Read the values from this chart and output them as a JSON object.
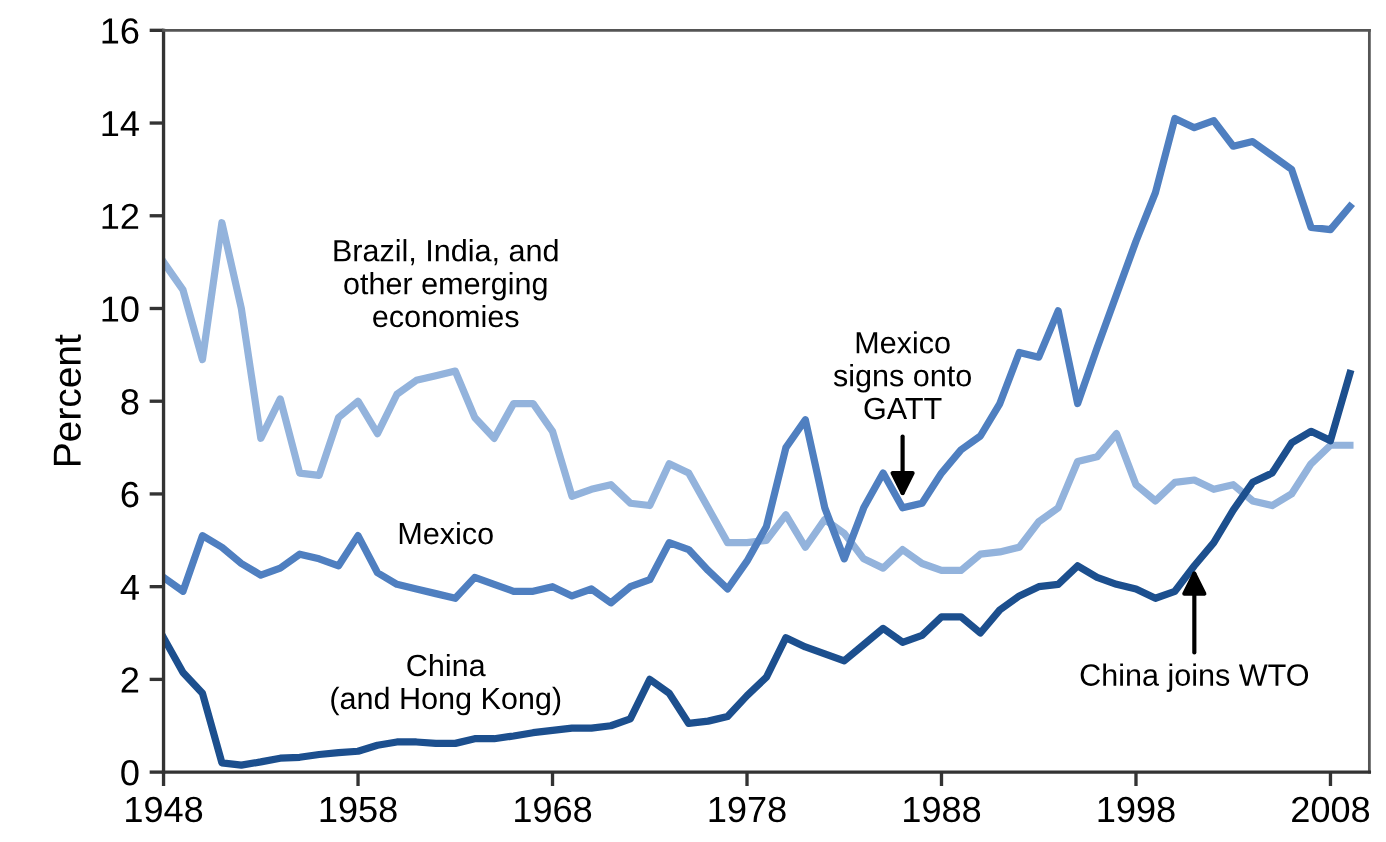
{
  "chart_data": {
    "type": "line",
    "ylabel": "Percent",
    "x": [
      1948,
      1949,
      1950,
      1951,
      1952,
      1953,
      1954,
      1955,
      1956,
      1957,
      1958,
      1959,
      1960,
      1961,
      1962,
      1963,
      1964,
      1965,
      1966,
      1967,
      1968,
      1969,
      1970,
      1971,
      1972,
      1973,
      1974,
      1975,
      1976,
      1977,
      1978,
      1979,
      1980,
      1981,
      1982,
      1983,
      1984,
      1985,
      1986,
      1987,
      1988,
      1989,
      1990,
      1991,
      1992,
      1993,
      1994,
      1995,
      1996,
      1997,
      1998,
      1999,
      2000,
      2001,
      2002,
      2003,
      2004,
      2005,
      2006,
      2007,
      2008,
      2009
    ],
    "series": [
      {
        "name": "Brazil, India, and\nother emerging\neconomies",
        "color": "#93b3dc",
        "values": [
          11.0,
          10.4,
          8.9,
          11.85,
          10.0,
          7.2,
          8.05,
          6.45,
          6.4,
          7.65,
          8.0,
          7.3,
          8.15,
          8.45,
          8.55,
          8.65,
          7.65,
          7.2,
          7.95,
          7.95,
          7.35,
          5.95,
          6.1,
          6.2,
          5.8,
          5.75,
          6.65,
          6.45,
          5.7,
          4.95,
          4.95,
          5.0,
          5.55,
          4.85,
          5.45,
          5.15,
          4.6,
          4.4,
          4.8,
          4.5,
          4.35,
          4.35,
          4.7,
          4.75,
          4.85,
          5.4,
          5.7,
          6.7,
          6.8,
          7.3,
          6.2,
          5.85,
          6.25,
          6.3,
          6.1,
          6.2,
          5.85,
          5.75,
          6.0,
          6.65,
          7.05,
          7.05
        ]
      },
      {
        "name": "Mexico",
        "color": "#4f7fc0",
        "values": [
          4.2,
          3.9,
          5.1,
          4.85,
          4.5,
          4.25,
          4.4,
          4.7,
          4.6,
          4.45,
          5.1,
          4.3,
          4.05,
          3.95,
          3.85,
          3.75,
          4.2,
          4.05,
          3.9,
          3.9,
          4.0,
          3.8,
          3.95,
          3.65,
          4.0,
          4.15,
          4.95,
          4.8,
          4.35,
          3.95,
          4.55,
          5.3,
          7.0,
          7.6,
          5.7,
          4.6,
          5.7,
          6.45,
          5.7,
          5.8,
          6.45,
          6.95,
          7.25,
          7.95,
          9.05,
          8.95,
          9.95,
          7.95,
          9.15,
          10.3,
          11.45,
          12.5,
          14.1,
          13.9,
          14.05,
          13.5,
          13.6,
          13.3,
          13.0,
          11.75,
          11.7,
          12.2
        ]
      },
      {
        "name": "China\n(and Hong Kong)",
        "color": "#1c4f8e",
        "values": [
          2.9,
          2.15,
          1.7,
          0.2,
          0.15,
          0.22,
          0.3,
          0.32,
          0.38,
          0.42,
          0.45,
          0.58,
          0.65,
          0.65,
          0.62,
          0.62,
          0.72,
          0.72,
          0.78,
          0.85,
          0.9,
          0.95,
          0.95,
          1.0,
          1.15,
          2.0,
          1.7,
          1.05,
          1.1,
          1.2,
          1.65,
          2.05,
          2.9,
          2.7,
          2.55,
          2.4,
          2.75,
          3.1,
          2.8,
          2.95,
          3.35,
          3.35,
          3.0,
          3.5,
          3.8,
          4.0,
          4.05,
          4.45,
          4.2,
          4.05,
          3.95,
          3.75,
          3.9,
          4.45,
          4.95,
          5.65,
          6.25,
          6.45,
          7.1,
          7.35,
          7.15,
          8.6
        ]
      }
    ],
    "annotations": [
      {
        "text": "Mexico\nsigns onto\nGATT",
        "x": 1986,
        "y": 5.8
      },
      {
        "text": "China joins WTO",
        "x": 2001,
        "y": 4.5
      }
    ],
    "xlim": [
      1948,
      2010
    ],
    "xticks": [
      1948,
      1958,
      1968,
      1978,
      1988,
      1998,
      2008
    ],
    "ylim": [
      0,
      16
    ],
    "yticks": [
      0,
      2,
      4,
      6,
      8,
      10,
      12,
      14,
      16
    ],
    "grid": false,
    "legend": false,
    "marker": "none",
    "line_style": "solid"
  }
}
